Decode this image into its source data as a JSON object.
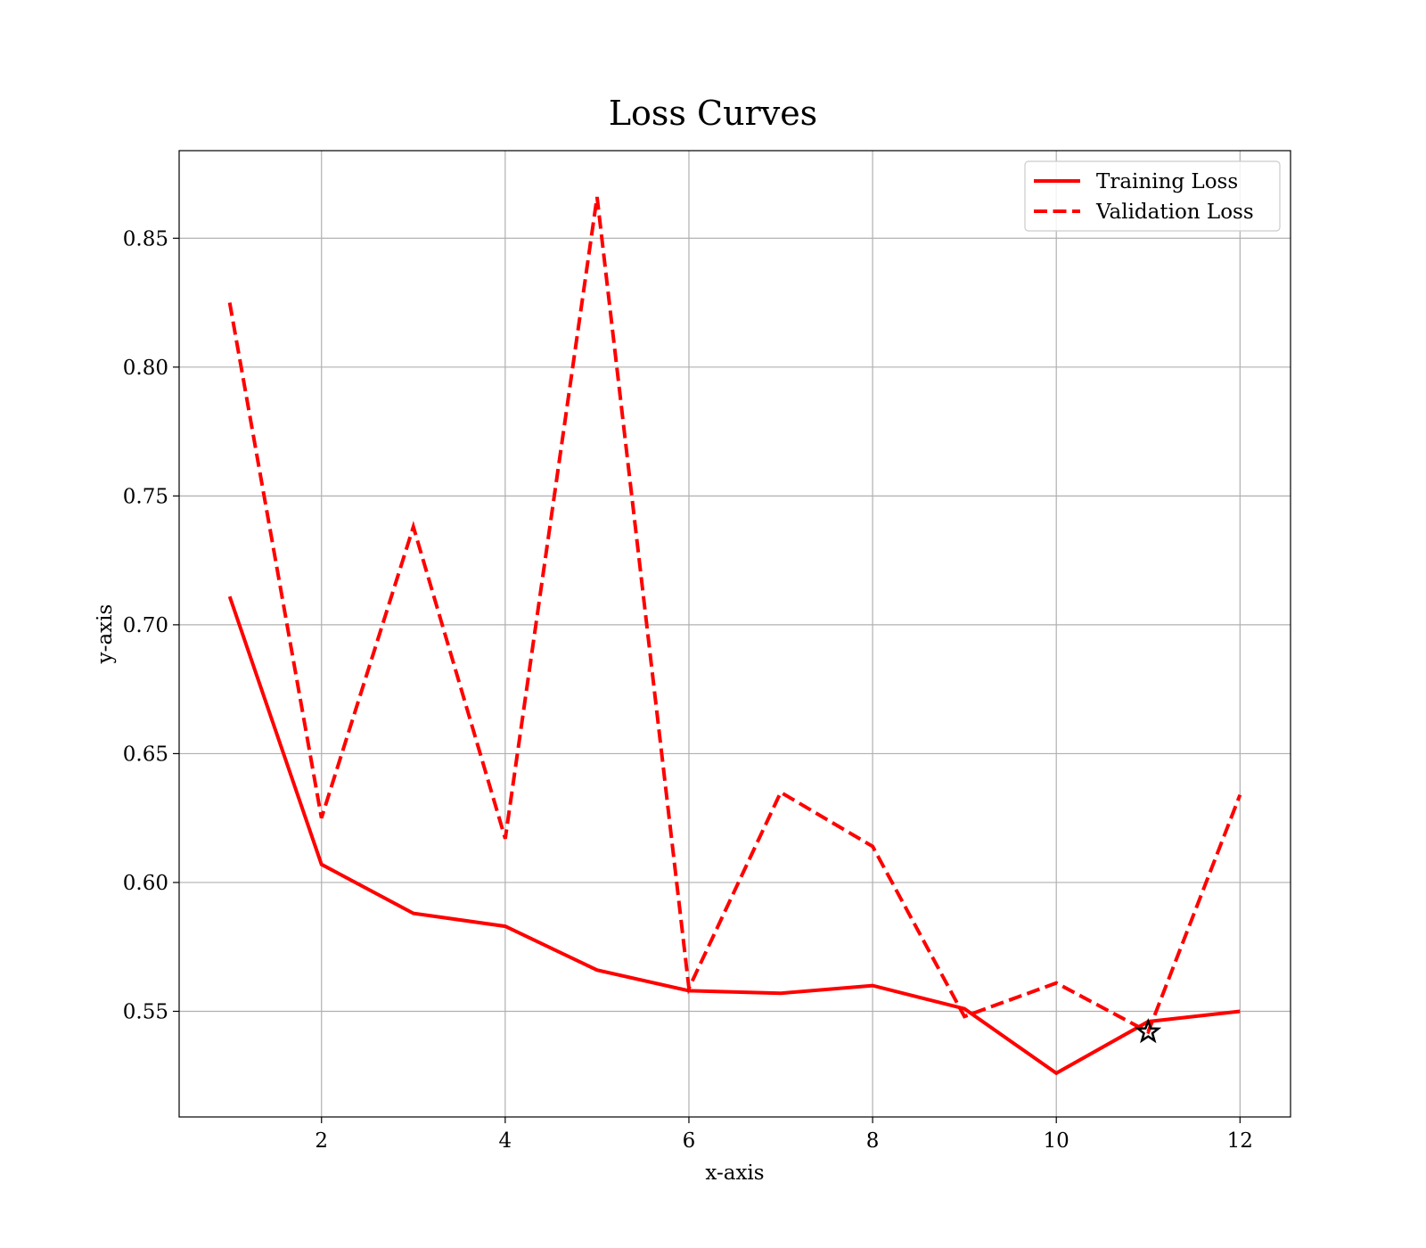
{
  "chart_data": {
    "type": "line",
    "title": "Loss Curves",
    "xlabel": "x-axis",
    "ylabel": "y-axis",
    "x": [
      1,
      2,
      3,
      4,
      5,
      6,
      7,
      8,
      9,
      10,
      11,
      12
    ],
    "xlim": [
      0.45,
      12.55
    ],
    "ylim": [
      0.509,
      0.884
    ],
    "xticks": [
      2,
      4,
      6,
      8,
      10,
      12
    ],
    "yticks": [
      0.55,
      0.6,
      0.65,
      0.7,
      0.75,
      0.8,
      0.85
    ],
    "ytick_labels": [
      "0.55",
      "0.60",
      "0.65",
      "0.70",
      "0.75",
      "0.80",
      "0.85"
    ],
    "grid": true,
    "legend_position": "top-right",
    "series": [
      {
        "name": "Training Loss",
        "style": "solid",
        "color": "#ff0000",
        "values": [
          0.711,
          0.607,
          0.588,
          0.583,
          0.566,
          0.558,
          0.557,
          0.56,
          0.551,
          0.526,
          0.546,
          0.55
        ]
      },
      {
        "name": "Validation Loss",
        "style": "dashed",
        "color": "#ff0000",
        "values": [
          0.825,
          0.625,
          0.738,
          0.617,
          0.866,
          0.559,
          0.635,
          0.614,
          0.548,
          0.561,
          0.542,
          0.634
        ]
      }
    ],
    "markers": [
      {
        "type": "star",
        "x": 11,
        "y": 0.542,
        "color": "#000000"
      }
    ]
  }
}
